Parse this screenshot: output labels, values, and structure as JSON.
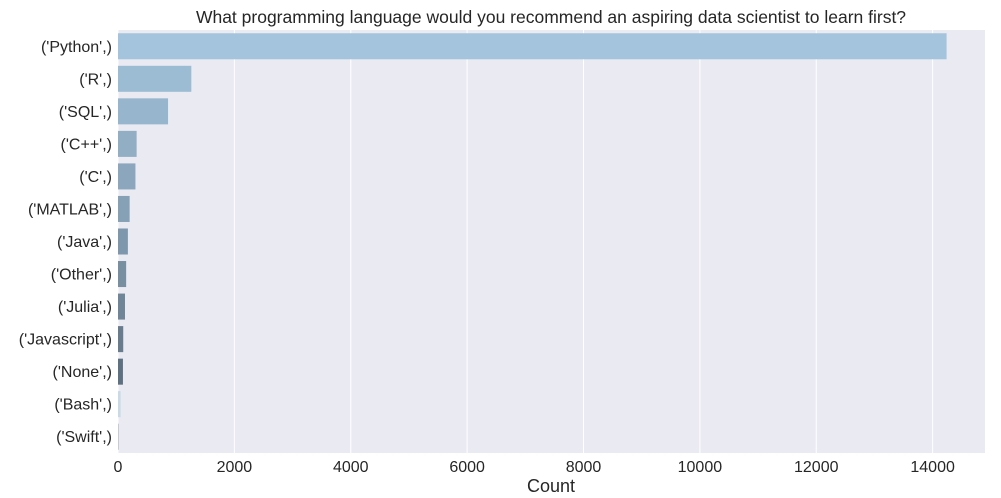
{
  "chart_data": {
    "type": "bar",
    "orientation": "horizontal",
    "title": "What programming language would you recommend an aspiring data scientist to learn first?",
    "xlabel": "Count",
    "ylabel": "",
    "xlim": [
      0,
      14900
    ],
    "xticks": [
      0,
      2000,
      4000,
      6000,
      8000,
      10000,
      12000,
      14000
    ],
    "grid": true,
    "background": "#eaeaf2",
    "categories": [
      "('Python',)",
      "('R',)",
      "('SQL',)",
      "('C++',)",
      "('C',)",
      "('MATLAB',)",
      "('Java',)",
      "('Other',)",
      "('Julia',)",
      "('Javascript',)",
      "('None',)",
      "('Bash',)",
      "('Swift',)"
    ],
    "values": [
      14240,
      1260,
      860,
      320,
      300,
      200,
      170,
      140,
      120,
      90,
      85,
      45,
      15
    ],
    "colors": [
      "#a3c4dc",
      "#9cbcd4",
      "#97b6ce",
      "#92aec5",
      "#8ca7bd",
      "#86a0b6",
      "#7f97ac",
      "#788fa2",
      "#708598",
      "#687c8d",
      "#5e7182",
      "#c9d9e6",
      "#c4cbd2"
    ]
  }
}
